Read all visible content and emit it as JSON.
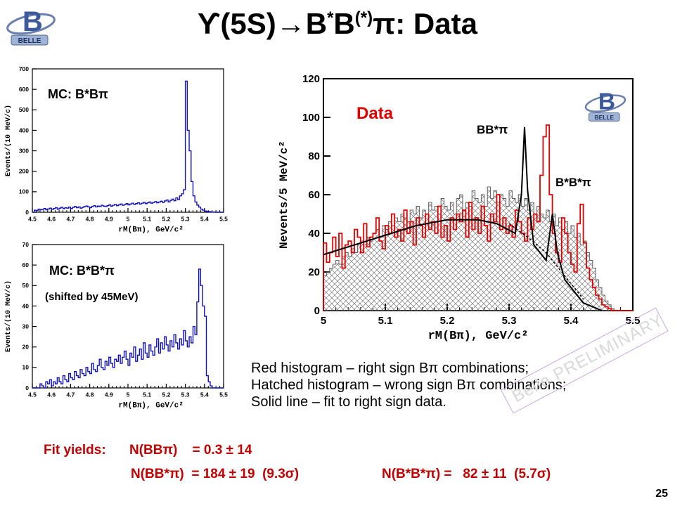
{
  "slide": {
    "title_prefix": "ϒ(5S)→B",
    "title_sup1": "*",
    "title_mid": "B",
    "title_sup2": "(*)",
    "title_suffix": "π: Data",
    "page_number": "25",
    "logo_text": "BELLE",
    "stamp": "Belle PRELIMINARY"
  },
  "notes": {
    "line1": "Red histogram – right sign Bπ combinations;",
    "line2": "Hatched histogram –  wrong sign Bπ combinations;",
    "line3": "Solid line – fit to right sign data."
  },
  "yields": {
    "label": "Fit yields:",
    "bb_pi": "N(BBπ)    = 0.3 ± 14",
    "bbstar_pi": "N(BB*π)  = 184 ± 19  (9.3σ)",
    "bstarbstar_pi": "N(B*B*π) =   82 ± 11  (5.7σ)"
  },
  "chart_data": [
    {
      "type": "bar",
      "title": "MC: B*Bπ",
      "xlabel": "rM(Bπ), GeV/c²",
      "ylabel": "Events/(10 MeV/c)",
      "xlim": [
        4.5,
        5.5
      ],
      "ylim": [
        0,
        700
      ],
      "x_ticks": [
        "4.5",
        "4.6",
        "4.7",
        "4.8",
        "4.9",
        "5",
        "5.1",
        "5.2",
        "5.3",
        "5.4",
        "5.5"
      ],
      "y_ticks": [
        "0",
        "100",
        "200",
        "300",
        "400",
        "500",
        "600",
        "700"
      ],
      "color": "#1010c0",
      "bin_width": 0.01,
      "x_start": 4.5,
      "values": [
        0,
        10,
        8,
        15,
        12,
        14,
        18,
        12,
        16,
        20,
        14,
        18,
        22,
        15,
        20,
        24,
        18,
        22,
        20,
        25,
        18,
        24,
        28,
        22,
        26,
        20,
        24,
        28,
        30,
        26,
        22,
        28,
        32,
        26,
        30,
        28,
        34,
        30,
        28,
        32,
        36,
        30,
        34,
        38,
        32,
        36,
        40,
        34,
        38,
        42,
        36,
        40,
        44,
        38,
        42,
        46,
        40,
        44,
        48,
        42,
        46,
        50,
        44,
        48,
        52,
        46,
        50,
        54,
        48,
        55,
        60,
        50,
        58,
        64,
        56,
        70,
        62,
        80,
        90,
        110,
        640,
        400,
        300,
        150,
        80,
        50,
        35,
        25,
        15,
        10,
        6,
        4,
        3,
        2,
        1,
        1,
        0,
        0,
        0,
        0
      ]
    },
    {
      "type": "bar",
      "title": "MC: B*B*π",
      "subtitle": "(shifted by 45MeV)",
      "xlabel": "rM(Bπ), GeV/c²",
      "ylabel": "Events/(10 MeV/c)",
      "xlim": [
        4.5,
        5.5
      ],
      "ylim": [
        0,
        70
      ],
      "x_ticks": [
        "4.5",
        "4.6",
        "4.7",
        "4.8",
        "4.9",
        "5",
        "5.1",
        "5.2",
        "5.3",
        "5.4",
        "5.5"
      ],
      "y_ticks": [
        "0",
        "10",
        "20",
        "30",
        "40",
        "50",
        "60",
        "70"
      ],
      "color": "#1010c0",
      "bin_width": 0.01,
      "x_start": 4.5,
      "values": [
        0,
        0,
        0,
        0,
        2,
        1,
        0,
        3,
        2,
        4,
        1,
        3,
        2,
        5,
        3,
        2,
        6,
        4,
        3,
        7,
        5,
        4,
        8,
        6,
        5,
        9,
        7,
        6,
        10,
        8,
        7,
        12,
        9,
        8,
        11,
        14,
        10,
        9,
        13,
        11,
        15,
        12,
        10,
        14,
        13,
        16,
        12,
        15,
        18,
        14,
        11,
        17,
        15,
        20,
        13,
        16,
        19,
        14,
        22,
        17,
        15,
        21,
        18,
        16,
        20,
        24,
        17,
        22,
        19,
        25,
        21,
        18,
        23,
        20,
        26,
        22,
        19,
        24,
        21,
        28,
        23,
        20,
        25,
        22,
        30,
        26,
        42,
        58,
        50,
        40,
        35,
        6,
        3,
        1,
        0,
        0,
        0,
        0,
        0,
        0
      ]
    },
    {
      "type": "bar",
      "title": "Data",
      "xlabel": "rM(Bπ), GeV/c²",
      "ylabel": "Nevents/5 MeV/c²",
      "xlim": [
        5.0,
        5.5
      ],
      "ylim": [
        0,
        120
      ],
      "x_ticks": [
        "5",
        "5.1",
        "5.2",
        "5.3",
        "5.4",
        "5.5"
      ],
      "y_ticks": [
        "0",
        "20",
        "40",
        "60",
        "80",
        "100",
        "120"
      ],
      "bin_width": 0.005,
      "x_start": 5.0,
      "series": [
        {
          "name": "Red histogram – right sign Bπ combinations",
          "color": "#e00000",
          "values": [
            35,
            25,
            30,
            38,
            28,
            40,
            22,
            34,
            36,
            30,
            42,
            38,
            30,
            45,
            33,
            38,
            40,
            48,
            36,
            32,
            44,
            40,
            50,
            38,
            42,
            36,
            52,
            40,
            46,
            34,
            48,
            44,
            38,
            50,
            42,
            46,
            40,
            54,
            38,
            44,
            36,
            48,
            42,
            50,
            46,
            52,
            38,
            56,
            42,
            48,
            40,
            54,
            44,
            36,
            50,
            46,
            60,
            42,
            48,
            40,
            44,
            38,
            52,
            46,
            40,
            36,
            48,
            42,
            50,
            46,
            70,
            90,
            96,
            60,
            40,
            30,
            25,
            48,
            40,
            30,
            24,
            20,
            45,
            55,
            35,
            22,
            16,
            12,
            8,
            6,
            3,
            2,
            1,
            0,
            0,
            0,
            0,
            0,
            0,
            0
          ]
        },
        {
          "name": "Hatched histogram – wrong sign Bπ combinations",
          "color": "#606060",
          "values": [
            18,
            20,
            22,
            24,
            26,
            24,
            28,
            30,
            28,
            32,
            30,
            34,
            36,
            34,
            38,
            36,
            40,
            42,
            38,
            44,
            42,
            46,
            44,
            48,
            46,
            50,
            48,
            46,
            52,
            50,
            54,
            48,
            52,
            50,
            56,
            52,
            54,
            50,
            58,
            54,
            52,
            56,
            50,
            58,
            60,
            52,
            56,
            54,
            62,
            58,
            56,
            60,
            54,
            64,
            58,
            62,
            56,
            60,
            58,
            54,
            62,
            58,
            56,
            60,
            54,
            58,
            52,
            56,
            50,
            54,
            50,
            48,
            52,
            46,
            50,
            44,
            48,
            42,
            46,
            40,
            44,
            38,
            40,
            34,
            36,
            30,
            26,
            22,
            16,
            12,
            8,
            5,
            3,
            1,
            0,
            0,
            0,
            0,
            0,
            0
          ]
        },
        {
          "name": "Solid line – fit to right sign data",
          "color": "#000000",
          "curve": [
            [
              5.0,
              29
            ],
            [
              5.05,
              34
            ],
            [
              5.1,
              39
            ],
            [
              5.15,
              44
            ],
            [
              5.2,
              47
            ],
            [
              5.25,
              47
            ],
            [
              5.28,
              45
            ],
            [
              5.31,
              40
            ],
            [
              5.32,
              60
            ],
            [
              5.325,
              95
            ],
            [
              5.33,
              62
            ],
            [
              5.34,
              34
            ],
            [
              5.36,
              26
            ],
            [
              5.37,
              50
            ],
            [
              5.378,
              30
            ],
            [
              5.39,
              16
            ],
            [
              5.42,
              4
            ],
            [
              5.45,
              0
            ]
          ]
        }
      ],
      "annotations": [
        "BB*π",
        "B*B*π"
      ]
    }
  ]
}
